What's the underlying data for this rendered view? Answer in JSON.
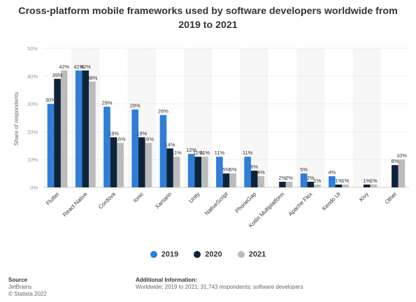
{
  "title": "Cross-platform mobile frameworks used by software developers worldwide from 2019 to 2021",
  "chart_data": {
    "type": "bar",
    "title": "Cross-platform mobile frameworks used by software developers worldwide from 2019 to 2021",
    "ylabel": "Share of respondents",
    "xlabel": "",
    "ylim": [
      0,
      50
    ],
    "yticks": [
      "0%",
      "10%",
      "20%",
      "30%",
      "40%",
      "50%"
    ],
    "grid": true,
    "legend_position": "bottom",
    "categories": [
      "Flutter",
      "React Native",
      "Cordova",
      "Ionic",
      "Xamarin",
      "Unity",
      "NativeScript",
      "PhoneGap",
      "Kotlin Multiplatform",
      "Apache Flex",
      "Kendo UI",
      "Kivy",
      "Other"
    ],
    "series": [
      {
        "name": "2019",
        "color": "#2f7ed8",
        "values": [
          30,
          42,
          29,
          28,
          26,
          12,
          11,
          11,
          null,
          5,
          4,
          null,
          null
        ],
        "labels": [
          "30%",
          "42%",
          "29%",
          "28%",
          "26%",
          "12%",
          "11%",
          "11%",
          "",
          "5%",
          "4%",
          "",
          ""
        ]
      },
      {
        "name": "2020",
        "color": "#0d233a",
        "values": [
          39,
          42,
          18,
          18,
          14,
          11,
          5,
          6,
          2,
          2,
          1,
          1,
          8
        ],
        "labels": [
          "39%",
          "42%",
          "18%",
          "18%",
          "14%",
          "11%",
          "5%",
          "6%",
          "2%",
          "2%",
          "1%",
          "1%",
          "8%"
        ]
      },
      {
        "name": "2021",
        "color": "#bcbcbc",
        "values": [
          42,
          38,
          16,
          16,
          11,
          11,
          5,
          4,
          2,
          1,
          1,
          1,
          10
        ],
        "labels": [
          "42%",
          "38%",
          "16%",
          "16%",
          "11%",
          "11%",
          "5%",
          "4%",
          "2%",
          "1%",
          "1%",
          "1%",
          "10%"
        ]
      }
    ]
  },
  "legend": {
    "items": [
      {
        "label": "2019",
        "color": "#2f7ed8"
      },
      {
        "label": "2020",
        "color": "#0d233a"
      },
      {
        "label": "2021",
        "color": "#bcbcbc"
      }
    ]
  },
  "footer": {
    "source_head": "Source",
    "source_line1": "JetBrains",
    "source_line2": "© Statista 2022",
    "info_head": "Additional Information:",
    "info_line": "Worldwide; 2019 to 2021; 31,743 respondents; software developers"
  }
}
